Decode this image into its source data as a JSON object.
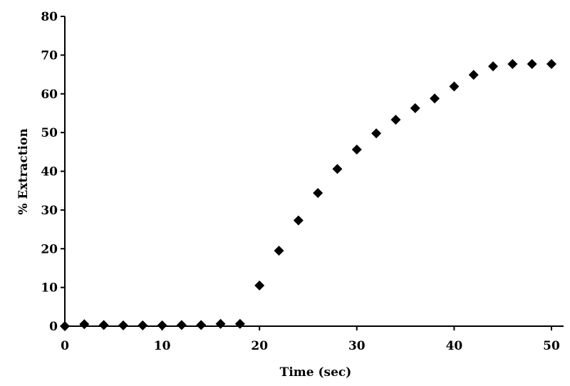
{
  "chart_data": {
    "type": "scatter",
    "title": "",
    "xlabel": "Time (sec)",
    "ylabel": "% Extraction",
    "xlim": [
      0,
      52
    ],
    "ylim": [
      0,
      80
    ],
    "x_ticks": [
      0,
      10,
      20,
      30,
      40,
      50
    ],
    "y_ticks": [
      0,
      10,
      20,
      30,
      40,
      50,
      60,
      70,
      80
    ],
    "grid": false,
    "legend": "none",
    "marker": "diamond",
    "marker_color": "#000000",
    "series": [
      {
        "x": [
          0,
          2,
          4,
          6,
          8,
          10,
          12,
          14,
          16,
          18,
          20,
          22,
          24,
          26,
          28,
          30,
          32,
          34,
          36,
          38,
          40,
          42,
          44,
          46,
          48,
          50
        ],
        "y": [
          0.0,
          0.5,
          0.3,
          0.2,
          0.2,
          0.2,
          0.3,
          0.3,
          0.6,
          0.6,
          10.5,
          19.5,
          27.3,
          34.4,
          40.6,
          45.6,
          49.8,
          53.3,
          56.3,
          58.8,
          61.9,
          64.9,
          67.1,
          67.7,
          67.7,
          67.7
        ]
      }
    ]
  }
}
